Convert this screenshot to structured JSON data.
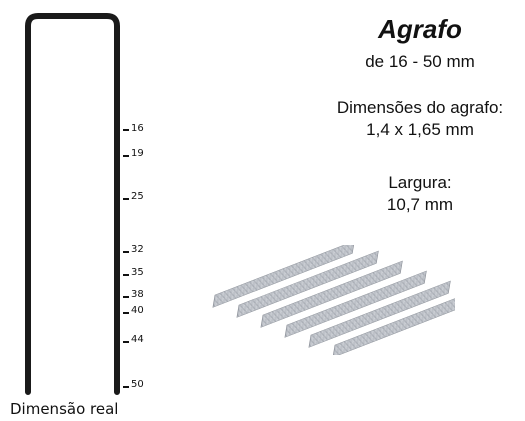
{
  "product": {
    "title": "Agrafo",
    "length_range": "de 16 - 50 mm",
    "dimensions_label": "Dimensões do agrafo:",
    "dimensions_value": "1,4 x 1,65 mm",
    "width_label": "Largura:",
    "width_value": "10,7 mm"
  },
  "scale": {
    "caption": "Dimensão real",
    "marks": [
      "16",
      "19",
      "25",
      "32",
      "35",
      "38",
      "40",
      "44",
      "50"
    ]
  }
}
